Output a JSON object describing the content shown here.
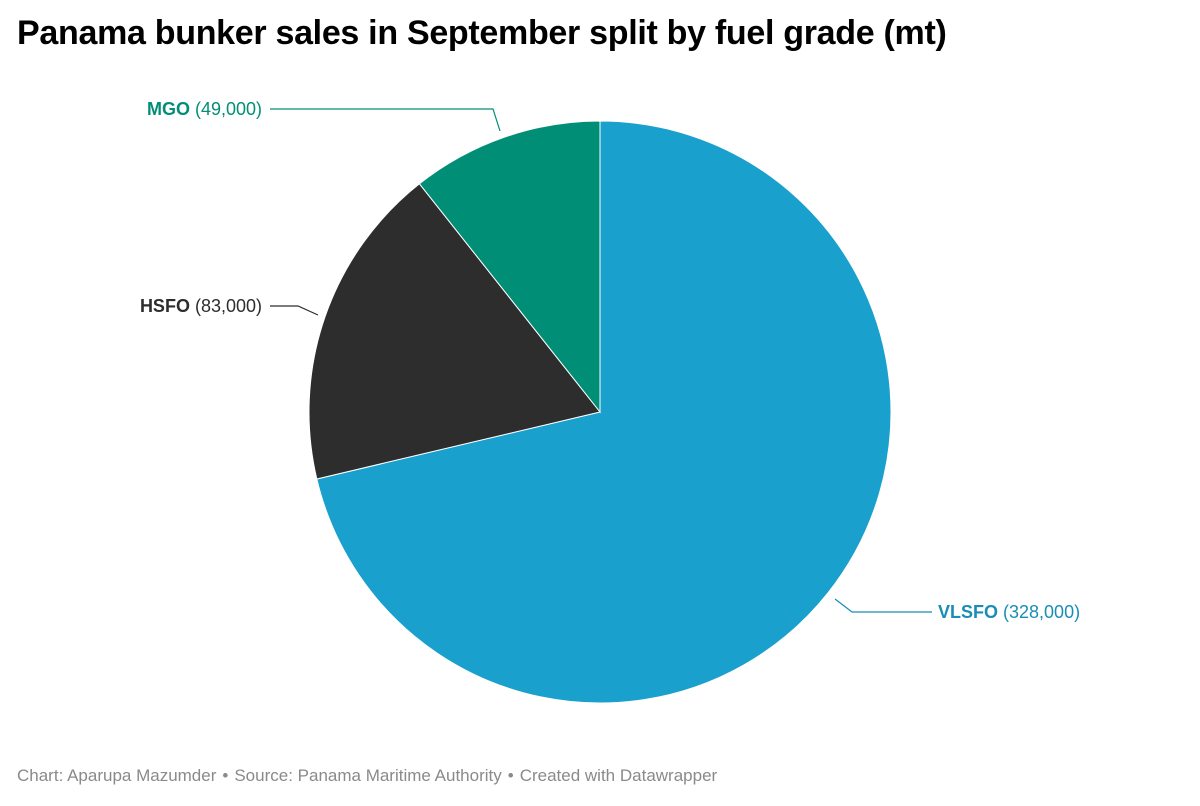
{
  "title": "Panama bunker sales in September split by fuel grade (mt)",
  "footer": {
    "chart_credit": "Chart: Aparupa Mazumder",
    "source": "Source: Panama Maritime Authority",
    "created_with": "Created with Datawrapper",
    "separator": "•"
  },
  "chart_data": {
    "type": "pie",
    "title": "Panama bunker sales in September split by fuel grade (mt)",
    "slices": [
      {
        "name": "VLSFO",
        "value": 328000,
        "label_value": "(328,000)",
        "color": "#1aa0cd"
      },
      {
        "name": "MGO",
        "value": 49000,
        "label_value": "(49,000)",
        "color": "#008f76"
      },
      {
        "name": "HSFO",
        "value": 83000,
        "label_value": "(83,000)",
        "color": "#2d2d2d"
      }
    ],
    "label_colors": {
      "VLSFO": "#1a8db5",
      "MGO": "#008f76",
      "HSFO": "#2d2d2d"
    },
    "start_angle": "12 o'clock",
    "direction": "clockwise for VLSFO, then HSFO, then MGO",
    "legend": "none (direct labels)"
  }
}
